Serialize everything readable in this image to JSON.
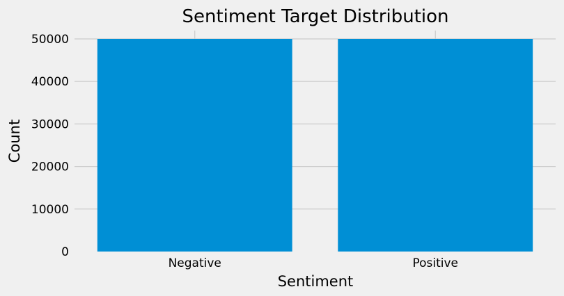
{
  "chart_data": {
    "type": "bar",
    "title": "Sentiment Target Distribution",
    "xlabel": "Sentiment",
    "ylabel": "Count",
    "categories": [
      "Negative",
      "Positive"
    ],
    "values": [
      50000,
      50000
    ],
    "ylim": [
      0,
      50000
    ],
    "yticks": [
      0,
      10000,
      20000,
      30000,
      40000,
      50000
    ],
    "ytick_labels": [
      "0",
      "10000",
      "20000",
      "30000",
      "40000",
      "50000"
    ],
    "grid": true,
    "bar_color": "#008fd5",
    "background_color": "#f0f0f0",
    "grid_color": "#cbcbcb"
  }
}
